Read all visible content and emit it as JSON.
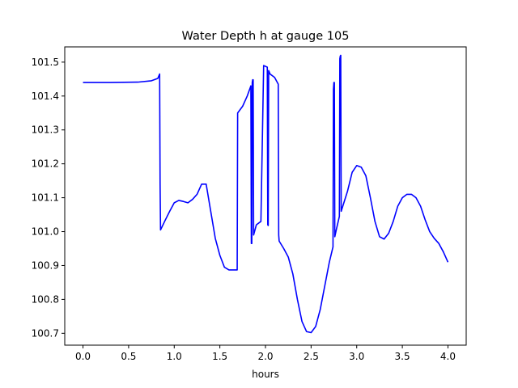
{
  "chart_data": {
    "type": "line",
    "title": "Water Depth h at gauge 105",
    "xlabel": "hours",
    "ylabel": "",
    "xlim": [
      -0.2,
      4.2
    ],
    "ylim": [
      100.665,
      101.545
    ],
    "xticks": [
      0.0,
      0.5,
      1.0,
      1.5,
      2.0,
      2.5,
      3.0,
      3.5,
      4.0
    ],
    "xtick_labels": [
      "0.0",
      "0.5",
      "1.0",
      "1.5",
      "2.0",
      "2.5",
      "3.0",
      "3.5",
      "4.0"
    ],
    "yticks": [
      100.7,
      100.8,
      100.9,
      101.0,
      101.1,
      101.2,
      101.3,
      101.4,
      101.5
    ],
    "ytick_labels": [
      "100.7",
      "100.8",
      "100.9",
      "101.0",
      "101.1",
      "101.2",
      "101.3",
      "101.4",
      "101.5"
    ],
    "grid": false,
    "series": [
      {
        "color": "#0000ff",
        "x": [
          0.0,
          0.3,
          0.6,
          0.75,
          0.82,
          0.84,
          0.845,
          0.85,
          0.9,
          0.95,
          1.0,
          1.05,
          1.1,
          1.15,
          1.2,
          1.25,
          1.3,
          1.35,
          1.4,
          1.45,
          1.5,
          1.55,
          1.6,
          1.65,
          1.69,
          1.695,
          1.75,
          1.8,
          1.84,
          1.845,
          1.85,
          1.855,
          1.86,
          1.865,
          1.87,
          1.9,
          1.95,
          1.98,
          2.02,
          2.025,
          2.03,
          2.035,
          2.04,
          2.05,
          2.1,
          2.14,
          2.145,
          2.15,
          2.2,
          2.25,
          2.3,
          2.35,
          2.4,
          2.45,
          2.5,
          2.55,
          2.6,
          2.65,
          2.7,
          2.74,
          2.745,
          2.75,
          2.755,
          2.76,
          2.78,
          2.81,
          2.815,
          2.82,
          2.825,
          2.83,
          2.9,
          2.95,
          3.0,
          3.05,
          3.1,
          3.15,
          3.2,
          3.25,
          3.3,
          3.35,
          3.4,
          3.45,
          3.5,
          3.55,
          3.6,
          3.65,
          3.7,
          3.75,
          3.8,
          3.85,
          3.9,
          3.95,
          4.0
        ],
        "y": [
          101.44,
          101.44,
          101.441,
          101.445,
          101.452,
          101.465,
          101.14,
          101.005,
          101.033,
          101.06,
          101.085,
          101.092,
          101.089,
          101.085,
          101.095,
          101.11,
          101.14,
          101.14,
          101.06,
          100.98,
          100.93,
          100.895,
          100.887,
          100.887,
          100.887,
          101.35,
          101.37,
          101.4,
          101.43,
          100.965,
          100.965,
          101.44,
          101.448,
          101.448,
          100.99,
          101.02,
          101.03,
          101.49,
          101.485,
          101.02,
          101.018,
          101.475,
          101.472,
          101.465,
          101.455,
          101.435,
          100.99,
          100.972,
          100.95,
          100.925,
          100.875,
          100.8,
          100.735,
          100.705,
          100.702,
          100.72,
          100.77,
          100.84,
          100.91,
          100.955,
          101.42,
          101.44,
          101.44,
          100.985,
          101.01,
          101.045,
          101.51,
          101.518,
          101.52,
          101.06,
          101.12,
          101.175,
          101.195,
          101.19,
          101.165,
          101.1,
          101.03,
          100.985,
          100.978,
          100.995,
          101.03,
          101.075,
          101.1,
          101.11,
          101.11,
          101.1,
          101.075,
          101.035,
          101.0,
          100.98,
          100.965,
          100.94,
          100.91
        ]
      }
    ]
  }
}
